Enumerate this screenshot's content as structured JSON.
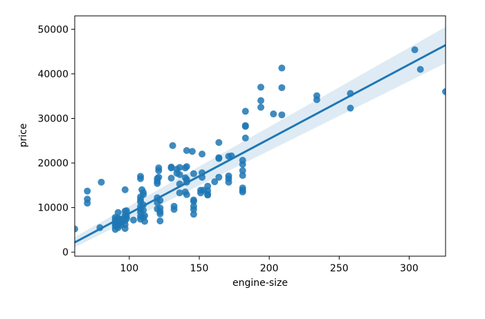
{
  "chart_data": {
    "type": "scatter",
    "title": "",
    "xlabel": "engine-size",
    "ylabel": "price",
    "xlim": [
      61,
      326
    ],
    "ylim": [
      -900,
      53000
    ],
    "xticks": [
      100,
      150,
      200,
      250,
      300
    ],
    "yticks": [
      0,
      10000,
      20000,
      30000,
      40000,
      50000
    ],
    "grid": false,
    "point_color": "#1f77b4",
    "regression": {
      "slope": 167,
      "intercept": -8000,
      "ci_lower_at_xmin": 1100,
      "ci_upper_at_xmin": 3400,
      "ci_lower_at_xmax": 42400,
      "ci_upper_at_xmax": 50500
    },
    "points": [
      [
        61,
        5200
      ],
      [
        70,
        13700
      ],
      [
        70,
        11900
      ],
      [
        70,
        11000
      ],
      [
        80,
        15700
      ],
      [
        79,
        5500
      ],
      [
        90,
        5800
      ],
      [
        90,
        6300
      ],
      [
        90,
        6800
      ],
      [
        90,
        7300
      ],
      [
        90,
        7800
      ],
      [
        90,
        5100
      ],
      [
        92,
        5500
      ],
      [
        92,
        6000
      ],
      [
        92,
        6500
      ],
      [
        92,
        7000
      ],
      [
        92,
        7600
      ],
      [
        92,
        8900
      ],
      [
        94,
        6100
      ],
      [
        94,
        6700
      ],
      [
        94,
        7400
      ],
      [
        97,
        5300
      ],
      [
        97,
        6200
      ],
      [
        97,
        7100
      ],
      [
        97,
        8300
      ],
      [
        97,
        9200
      ],
      [
        97,
        14000
      ],
      [
        98,
        7500
      ],
      [
        98,
        9300
      ],
      [
        98,
        8100
      ],
      [
        103,
        7200
      ],
      [
        108,
        7400
      ],
      [
        108,
        8000
      ],
      [
        108,
        8900
      ],
      [
        108,
        9600
      ],
      [
        108,
        10200
      ],
      [
        108,
        11300
      ],
      [
        108,
        11800
      ],
      [
        108,
        12400
      ],
      [
        108,
        16500
      ],
      [
        108,
        17000
      ],
      [
        109,
        14000
      ],
      [
        110,
        7800
      ],
      [
        110,
        9400
      ],
      [
        110,
        10600
      ],
      [
        110,
        12900
      ],
      [
        110,
        13400
      ],
      [
        111,
        6900
      ],
      [
        111,
        8200
      ],
      [
        120,
        9700
      ],
      [
        120,
        11100
      ],
      [
        120,
        12200
      ],
      [
        120,
        15400
      ],
      [
        120,
        15900
      ],
      [
        120,
        16500
      ],
      [
        121,
        16800
      ],
      [
        121,
        18300
      ],
      [
        121,
        18900
      ],
      [
        122,
        7000
      ],
      [
        122,
        8600
      ],
      [
        122,
        9100
      ],
      [
        122,
        9900
      ],
      [
        122,
        11600
      ],
      [
        130,
        16600
      ],
      [
        130,
        18900
      ],
      [
        130,
        19100
      ],
      [
        131,
        23900
      ],
      [
        132,
        9600
      ],
      [
        132,
        10300
      ],
      [
        134,
        17700
      ],
      [
        134,
        18600
      ],
      [
        136,
        13300
      ],
      [
        136,
        15300
      ],
      [
        136,
        17400
      ],
      [
        136,
        19000
      ],
      [
        140,
        13500
      ],
      [
        140,
        16700
      ],
      [
        140,
        18900
      ],
      [
        141,
        12900
      ],
      [
        141,
        15700
      ],
      [
        141,
        16300
      ],
      [
        141,
        22800
      ],
      [
        141,
        19200
      ],
      [
        145,
        22600
      ],
      [
        146,
        8500
      ],
      [
        146,
        9600
      ],
      [
        146,
        10300
      ],
      [
        146,
        11400
      ],
      [
        146,
        11700
      ],
      [
        146,
        17600
      ],
      [
        151,
        13300
      ],
      [
        151,
        13900
      ],
      [
        152,
        16800
      ],
      [
        152,
        22000
      ],
      [
        152,
        17800
      ],
      [
        153,
        13900
      ],
      [
        156,
        12800
      ],
      [
        156,
        13000
      ],
      [
        156,
        13800
      ],
      [
        156,
        14800
      ],
      [
        161,
        15800
      ],
      [
        164,
        16800
      ],
      [
        164,
        21000
      ],
      [
        164,
        21200
      ],
      [
        164,
        24600
      ],
      [
        171,
        15700
      ],
      [
        171,
        16500
      ],
      [
        171,
        17100
      ],
      [
        171,
        21500
      ],
      [
        173,
        21600
      ],
      [
        181,
        13500
      ],
      [
        181,
        13900
      ],
      [
        181,
        14400
      ],
      [
        181,
        17200
      ],
      [
        181,
        18300
      ],
      [
        181,
        19700
      ],
      [
        181,
        20600
      ],
      [
        183,
        25600
      ],
      [
        183,
        28200
      ],
      [
        183,
        28400
      ],
      [
        183,
        31600
      ],
      [
        194,
        32500
      ],
      [
        194,
        34000
      ],
      [
        194,
        37000
      ],
      [
        203,
        31000
      ],
      [
        209,
        30800
      ],
      [
        209,
        36900
      ],
      [
        209,
        41300
      ],
      [
        234,
        34200
      ],
      [
        234,
        35100
      ],
      [
        258,
        32300
      ],
      [
        258,
        35600
      ],
      [
        304,
        45400
      ],
      [
        308,
        41000
      ],
      [
        326,
        36000
      ]
    ]
  }
}
